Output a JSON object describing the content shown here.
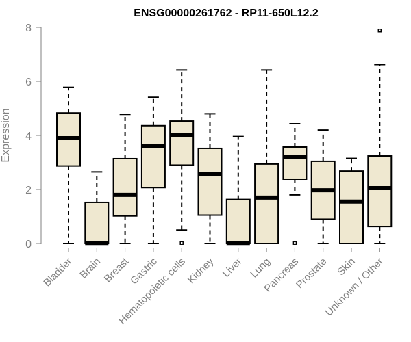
{
  "chart_data": {
    "type": "boxplot",
    "title": "ENSG00000261762 - RP11-650L12.2",
    "xlabel": "",
    "ylabel": "Expression",
    "ylim": [
      0,
      8
    ],
    "yticks": [
      0,
      2,
      4,
      6,
      8
    ],
    "box_fill": "#efe8d0",
    "box_stroke": "#000000",
    "axis_color": "#808080",
    "categories": [
      "Bladder",
      "Brain",
      "Breast",
      "Gastric",
      "Hematopoietic cells",
      "Kidney",
      "Liver",
      "Lung",
      "Pancreas",
      "Prostate",
      "Skin",
      "Unknown / Other"
    ],
    "boxes": [
      {
        "name": "Bladder",
        "whisker_low": 0,
        "q1": 2.87,
        "median": 3.9,
        "q3": 4.83,
        "whisker_high": 5.78,
        "outliers": []
      },
      {
        "name": "Brain",
        "whisker_low": 0,
        "q1": 0,
        "median": 0.02,
        "q3": 1.52,
        "whisker_high": 2.65,
        "outliers": []
      },
      {
        "name": "Breast",
        "whisker_low": 0,
        "q1": 1.02,
        "median": 1.8,
        "q3": 3.14,
        "whisker_high": 4.78,
        "outliers": []
      },
      {
        "name": "Gastric",
        "whisker_low": 0,
        "q1": 2.07,
        "median": 3.6,
        "q3": 4.36,
        "whisker_high": 5.41,
        "outliers": []
      },
      {
        "name": "Hematopoietic cells",
        "whisker_low": 0.5,
        "q1": 2.9,
        "median": 4.0,
        "q3": 4.53,
        "whisker_high": 6.42,
        "outliers": [
          0.02
        ]
      },
      {
        "name": "Kidney",
        "whisker_low": 0,
        "q1": 1.05,
        "median": 2.58,
        "q3": 3.52,
        "whisker_high": 4.8,
        "outliers": []
      },
      {
        "name": "Liver",
        "whisker_low": 0,
        "q1": 0,
        "median": 0.02,
        "q3": 1.63,
        "whisker_high": 3.96,
        "outliers": []
      },
      {
        "name": "Lung",
        "whisker_low": 0,
        "q1": 0,
        "median": 1.7,
        "q3": 2.94,
        "whisker_high": 6.42,
        "outliers": []
      },
      {
        "name": "Pancreas",
        "whisker_low": 1.8,
        "q1": 2.38,
        "median": 3.2,
        "q3": 3.57,
        "whisker_high": 4.43,
        "outliers": [
          0.02
        ]
      },
      {
        "name": "Prostate",
        "whisker_low": 0,
        "q1": 0.9,
        "median": 1.97,
        "q3": 3.04,
        "whisker_high": 4.2,
        "outliers": []
      },
      {
        "name": "Skin",
        "whisker_low": 0,
        "q1": 0,
        "median": 1.55,
        "q3": 2.68,
        "whisker_high": 3.15,
        "outliers": []
      },
      {
        "name": "Unknown / Other",
        "whisker_low": 0,
        "q1": 0.63,
        "median": 2.05,
        "q3": 3.24,
        "whisker_high": 6.62,
        "outliers": [
          7.88
        ]
      }
    ]
  }
}
